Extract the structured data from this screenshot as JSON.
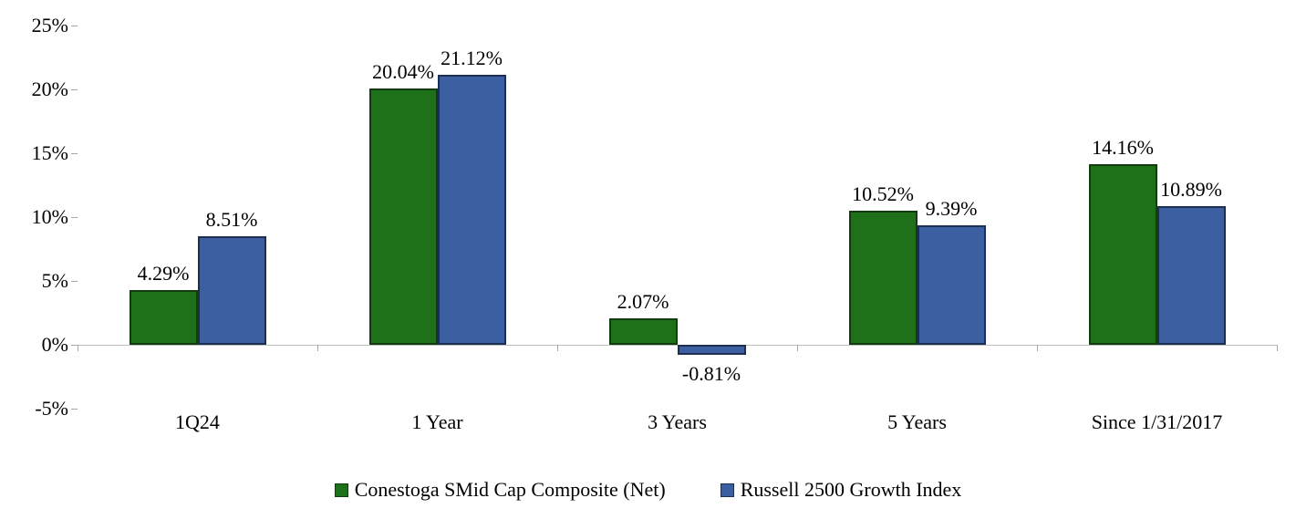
{
  "chart_data": {
    "type": "bar",
    "title": "",
    "categories": [
      "1Q24",
      "1 Year",
      "3 Years",
      "5 Years",
      "Since 1/31/2017"
    ],
    "series": [
      {
        "name": "Conestoga SMid Cap Composite (Net)",
        "color": "#1e7019",
        "border_color": "#123c0f",
        "values": [
          4.29,
          20.04,
          2.07,
          10.52,
          14.16
        ],
        "value_labels": [
          "4.29%",
          "20.04%",
          "2.07%",
          "10.52%",
          "14.16%"
        ]
      },
      {
        "name": "Russell 2500 Growth Index",
        "color": "#3b5fa0",
        "border_color": "#1c2f52",
        "values": [
          8.51,
          21.12,
          -0.81,
          9.39,
          10.89
        ],
        "value_labels": [
          "8.51%",
          "21.12%",
          "-0.81%",
          "9.39%",
          "10.89%"
        ]
      }
    ],
    "y_axis": {
      "min": -5,
      "max": 25,
      "step": 5,
      "tick_labels": [
        "-5%",
        "0%",
        "5%",
        "10%",
        "15%",
        "20%",
        "25%"
      ]
    },
    "grid": false,
    "legend_position": "bottom"
  }
}
